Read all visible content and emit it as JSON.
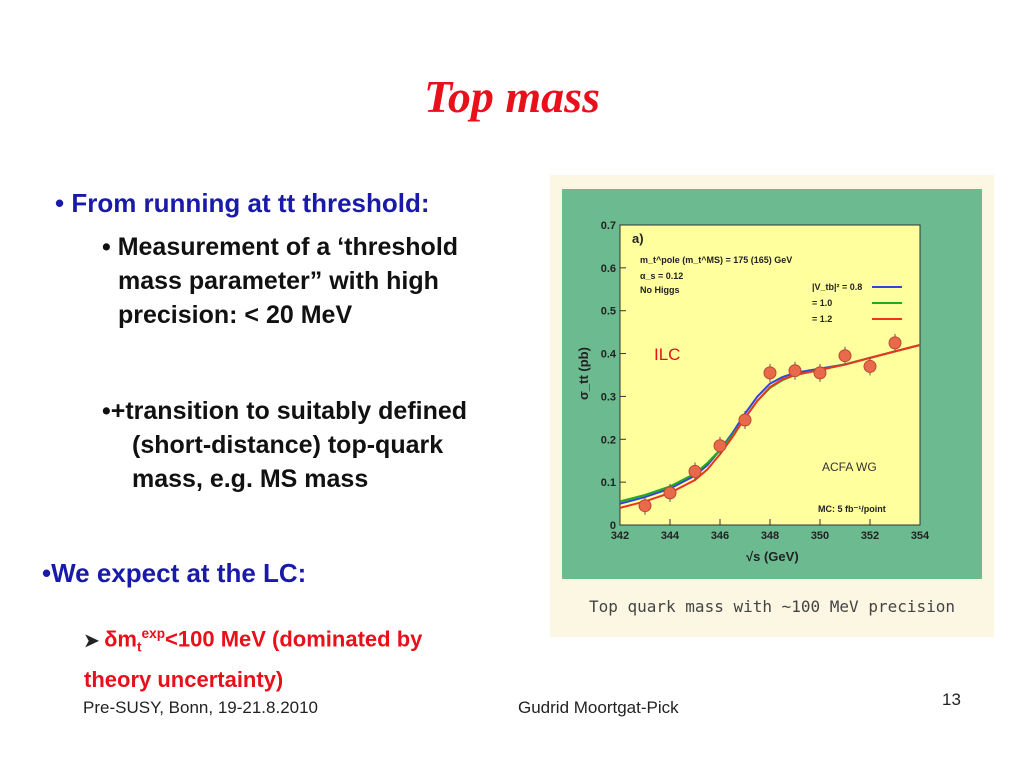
{
  "slide": {
    "title": "Top mass",
    "bullet1": "From running at tt threshold:",
    "sub1": [
      "Measurement of a ‘threshold",
      "mass parameter” with high",
      "precision: < 20 MeV"
    ],
    "sub2": [
      "•+transition to suitably defined",
      "(short-distance) top-quark",
      "mass, e.g. MS mass"
    ],
    "bullet2": "•We expect at the LC:",
    "red_line1_prefix": "δm",
    "red_line1_sub": "t",
    "red_line1_sup": "exp",
    "red_line1_rest": "<100 MeV (dominated by",
    "red_line2": "theory uncertainty)",
    "footer_left": "Pre-SUSY, Bonn, 19-21.8.2010",
    "footer_center": "Gudrid Moortgat-Pick",
    "page_number": "13"
  },
  "figure": {
    "caption": "Top quark mass with ~100 MeV precision",
    "panel_label": "a)",
    "param1": "m_t^pole (m_t^MS) = 175 (165) GeV",
    "param2": "α_s = 0.12",
    "param3": "No Higgs",
    "legend_title": "|V_tb|² = 0.8",
    "legend_entries": [
      "|V_tb|² = 0.8",
      "= 1.0",
      "= 1.2"
    ],
    "ilc_label": "ILC",
    "acfa_label": "ACFA WG",
    "mc_label": "MC: 5 fb⁻¹/point",
    "colors": {
      "bg": "#6cba8f",
      "plot": "#ffff9e",
      "blue": "#3344dd",
      "green": "#22aa22",
      "red": "#ee3322",
      "points": "#e86a4a"
    }
  },
  "chart_data": {
    "type": "line",
    "xlabel": "√s (GeV)",
    "ylabel": "σ_tt (pb)",
    "xlim": [
      342,
      354
    ],
    "ylim": [
      0,
      0.7
    ],
    "xticks": [
      342,
      344,
      346,
      348,
      350,
      352,
      354
    ],
    "yticks": [
      0,
      0.1,
      0.2,
      0.3,
      0.4,
      0.5,
      0.6,
      0.7
    ],
    "series": [
      {
        "name": "|V_tb|² = 0.8",
        "x": [
          342,
          343,
          344,
          345,
          345.5,
          346,
          346.5,
          347,
          347.5,
          348,
          348.5,
          349,
          350,
          351,
          352,
          353,
          354
        ],
        "y": [
          0.05,
          0.065,
          0.085,
          0.115,
          0.14,
          0.175,
          0.215,
          0.26,
          0.3,
          0.33,
          0.345,
          0.355,
          0.365,
          0.375,
          0.39,
          0.405,
          0.42
        ]
      },
      {
        "name": "= 1.0",
        "x": [
          342,
          343,
          344,
          345,
          345.5,
          346,
          346.5,
          347,
          347.5,
          348,
          348.5,
          349,
          350,
          351,
          352,
          353,
          354
        ],
        "y": [
          0.055,
          0.07,
          0.09,
          0.12,
          0.145,
          0.175,
          0.21,
          0.25,
          0.29,
          0.32,
          0.338,
          0.35,
          0.362,
          0.375,
          0.39,
          0.405,
          0.42
        ]
      },
      {
        "name": "= 1.2",
        "x": [
          342,
          343,
          344,
          345,
          345.5,
          346,
          346.5,
          347,
          347.5,
          348,
          348.5,
          349,
          350,
          351,
          352,
          353,
          354
        ],
        "y": [
          0.04,
          0.055,
          0.075,
          0.105,
          0.13,
          0.165,
          0.205,
          0.25,
          0.29,
          0.322,
          0.34,
          0.35,
          0.362,
          0.374,
          0.39,
          0.405,
          0.42
        ]
      }
    ],
    "points": {
      "x": [
        343,
        344,
        345,
        346,
        347,
        348,
        349,
        350,
        351,
        352,
        353
      ],
      "y": [
        0.045,
        0.075,
        0.125,
        0.185,
        0.245,
        0.355,
        0.36,
        0.355,
        0.395,
        0.37,
        0.425
      ]
    }
  }
}
